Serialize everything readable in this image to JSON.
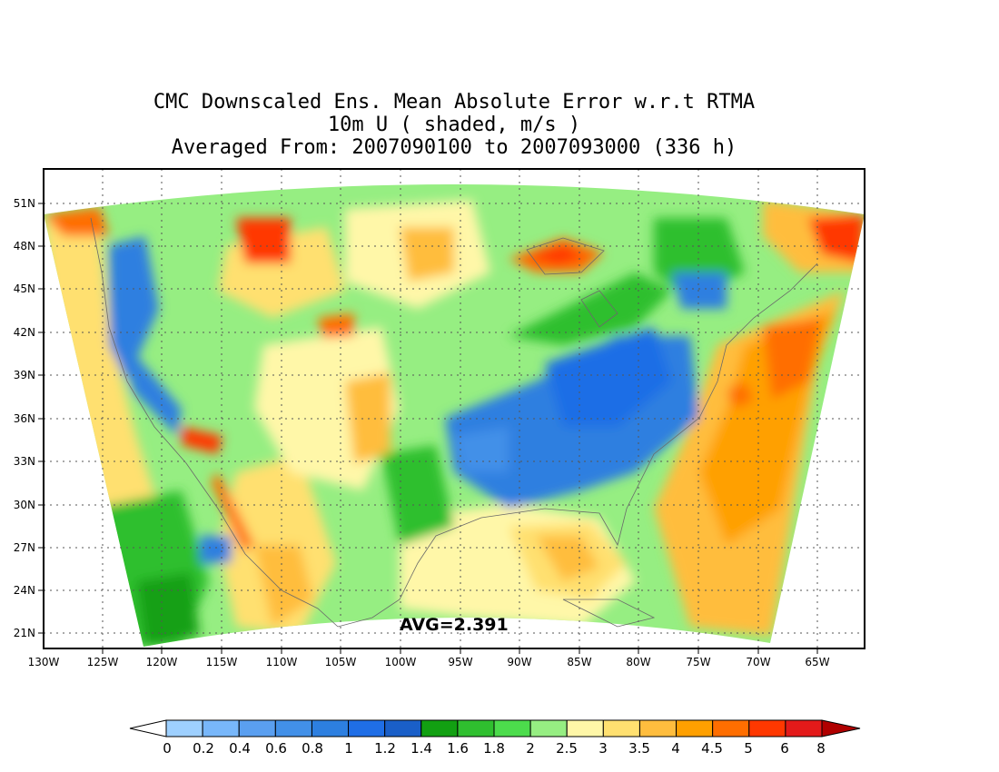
{
  "title": {
    "line1": "CMC Downscaled Ens. Mean Absolute Error w.r.t RTMA",
    "line2": "10m U ( shaded, m/s )",
    "line3": "Averaged From: 2007090100 to 2007093000 (336 h)"
  },
  "avg_label": "AVG=2.391",
  "map": {
    "lat_labels": [
      "51N",
      "48N",
      "45N",
      "42N",
      "39N",
      "36N",
      "33N",
      "30N",
      "27N",
      "24N",
      "21N"
    ],
    "lon_labels": [
      "130W",
      "125W",
      "120W",
      "115W",
      "110W",
      "105W",
      "100W",
      "95W",
      "90W",
      "85W",
      "80W",
      "75W",
      "70W",
      "65W"
    ],
    "grid": "dotted"
  },
  "colorbar": {
    "labels": [
      "0",
      "0.2",
      "0.4",
      "0.6",
      "0.8",
      "1",
      "1.2",
      "1.4",
      "1.6",
      "1.8",
      "2",
      "2.5",
      "3",
      "3.5",
      "4",
      "4.5",
      "5",
      "6",
      "8"
    ],
    "colors": [
      "#9ed0ff",
      "#78b7fa",
      "#5a9ff0",
      "#4290e8",
      "#2d7fe0",
      "#1f6ee6",
      "#1a5fc8",
      "#12a012",
      "#2fbf2f",
      "#4cdc4c",
      "#96ee82",
      "#fff7a8",
      "#ffe070",
      "#ffbd3e",
      "#ffa000",
      "#ff6e00",
      "#ff3800",
      "#e31a1a",
      "#b00000"
    ],
    "under_color": "#ffffff",
    "over_color": "#b00000"
  }
}
